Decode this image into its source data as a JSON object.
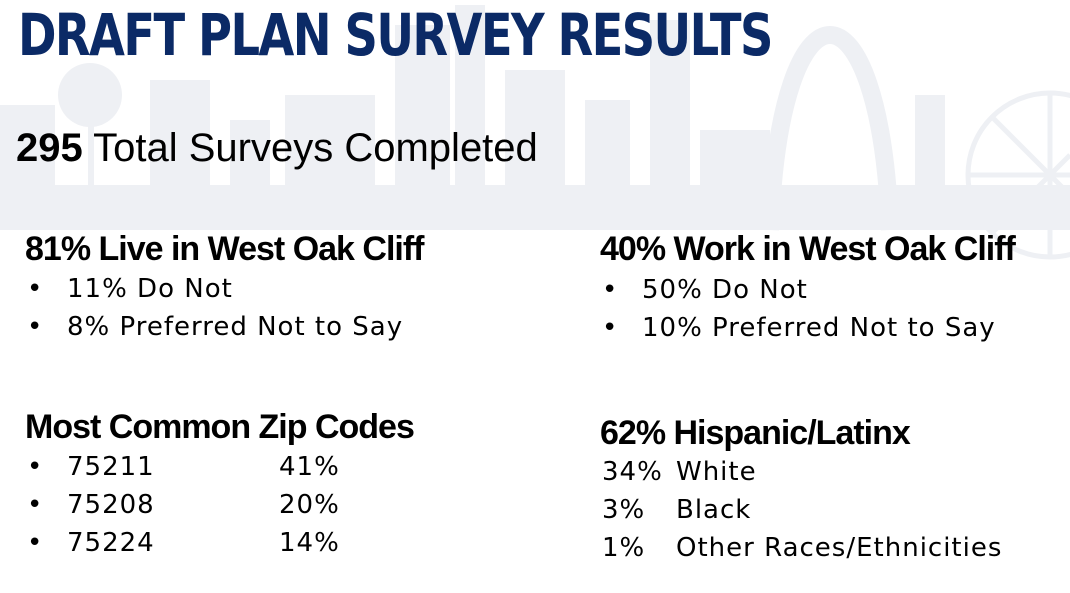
{
  "title": "DRAFT PLAN SURVEY RESULTS",
  "total": {
    "number": "295",
    "label": "Total Surveys Completed"
  },
  "live": {
    "heading": "81% Live in West Oak Cliff",
    "items": [
      "11% Do Not",
      "8% Preferred Not to Say"
    ]
  },
  "work": {
    "heading": "40% Work in West Oak Cliff",
    "items": [
      "50% Do Not",
      "10% Preferred Not to Say"
    ]
  },
  "zip": {
    "heading": "Most Common Zip Codes",
    "items": [
      {
        "code": "75211",
        "pct": "41%"
      },
      {
        "code": "75208",
        "pct": "20%"
      },
      {
        "code": "75224",
        "pct": "14%"
      }
    ]
  },
  "ethnicity": {
    "heading": "62% Hispanic/Latinx",
    "items": [
      {
        "pct": "34%",
        "label": "White"
      },
      {
        "pct": "3%",
        "label": "Black"
      },
      {
        "pct": "1%",
        "label": "Other Races/Ethnicities"
      }
    ]
  },
  "colors": {
    "title": "#0b2a66",
    "skyline": "#eef0f4",
    "text": "#000000"
  },
  "bullet_glyph": "•"
}
